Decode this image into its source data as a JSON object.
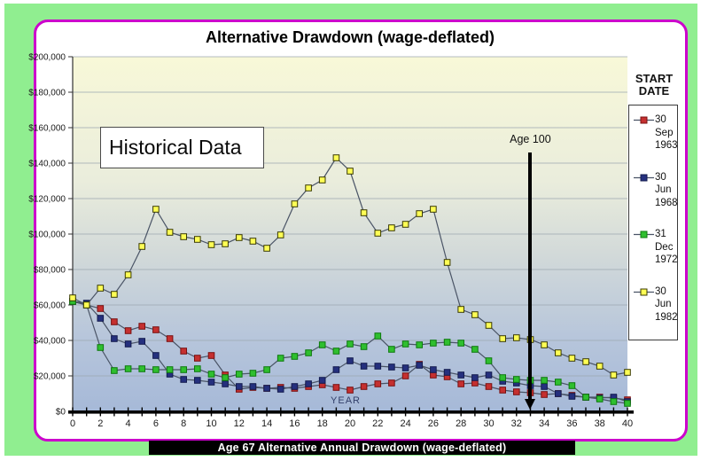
{
  "title": "Alternative Drawdown (wage-deflated)",
  "caption": "Age 67 Alternative Annual Drawdown (wage-deflated)",
  "annotations": {
    "historical": "Historical Data",
    "age100": "Age 100",
    "year_label": "YEAR"
  },
  "legend": {
    "header": "START DATE"
  },
  "colors": {
    "outer_mat": "#90ee90",
    "card_border": "#cc00cc",
    "plot_top": "#f8f8d8",
    "plot_mid": "#d3dad9",
    "plot_bottom": "#a6b9d8",
    "gridline": "#9ba6b0",
    "line": "#4a5466",
    "axis": "#000000"
  },
  "chart_data": {
    "type": "line",
    "title": "Alternative Drawdown (wage-deflated)",
    "xlabel": "YEAR",
    "ylabel": "",
    "xlim": [
      0,
      40
    ],
    "ylim": [
      0,
      200000
    ],
    "grid": true,
    "legend_position": "right",
    "annotation_line_x": 33,
    "x": [
      0,
      1,
      2,
      3,
      4,
      5,
      6,
      7,
      8,
      9,
      10,
      11,
      12,
      13,
      14,
      15,
      16,
      17,
      18,
      19,
      20,
      21,
      22,
      23,
      24,
      25,
      26,
      27,
      28,
      29,
      30,
      31,
      32,
      33,
      34,
      35,
      36,
      37,
      38,
      39,
      40
    ],
    "x_tick_values": [
      0,
      2,
      4,
      6,
      8,
      10,
      12,
      14,
      16,
      18,
      20,
      22,
      24,
      26,
      28,
      30,
      32,
      34,
      36,
      38,
      40
    ],
    "x_tick_labels": [
      "0",
      "2",
      "4",
      "6",
      "8",
      "10",
      "12",
      "14",
      "16",
      "18",
      "20",
      "22",
      "24",
      "26",
      "28",
      "30",
      "32",
      "34",
      "36",
      "38",
      "40"
    ],
    "y_tick_values": [
      200000,
      180000,
      160000,
      140000,
      120000,
      100000,
      80000,
      60000,
      40000,
      20000,
      0
    ],
    "y_tick_labels": [
      "$200,000",
      "$180,000",
      "$160,000",
      "$140,000",
      "$120,000",
      "$100,000",
      "$80,000",
      "$60,000",
      "$40,000",
      "$20,000",
      "$0"
    ],
    "series": [
      {
        "name": "30 Sep 1963",
        "label_lines": [
          "30",
          "Sep",
          "1963"
        ],
        "color": "#c53030",
        "border": "#7a1010",
        "values": [
          62000,
          60000,
          58000,
          50500,
          45500,
          48000,
          46000,
          41000,
          34000,
          30000,
          31500,
          20500,
          12500,
          13500,
          13000,
          13500,
          13000,
          14000,
          15000,
          13500,
          12000,
          14000,
          15500,
          16000,
          20000,
          26500,
          20500,
          19500,
          15500,
          16000,
          14000,
          12000,
          11000,
          10500,
          9500,
          10000,
          9000,
          8000,
          8000,
          7500,
          6500
        ]
      },
      {
        "name": "30 Jun 1968",
        "label_lines": [
          "30",
          "Jun",
          "1968"
        ],
        "color": "#25307e",
        "border": "#131b4e",
        "values": [
          62000,
          61000,
          52500,
          41000,
          38000,
          39500,
          31500,
          21000,
          18000,
          17500,
          16500,
          15500,
          14000,
          14000,
          13000,
          12500,
          14000,
          15500,
          17500,
          23500,
          28500,
          25500,
          25500,
          25000,
          24500,
          26000,
          23500,
          22000,
          20500,
          19000,
          20500,
          17000,
          16000,
          14500,
          14000,
          10000,
          8500,
          8000,
          7500,
          8000,
          5500
        ]
      },
      {
        "name": "31 Dec 1972",
        "label_lines": [
          "31",
          "Dec",
          "1972"
        ],
        "color": "#2fbf2f",
        "border": "#0d7a0d",
        "values": [
          62000,
          60000,
          36000,
          23000,
          24000,
          24000,
          23500,
          23500,
          23500,
          24000,
          21000,
          19000,
          21000,
          21500,
          23500,
          30000,
          31000,
          33000,
          37500,
          34000,
          38000,
          36500,
          42500,
          35000,
          38000,
          37500,
          38500,
          39000,
          38500,
          35000,
          28500,
          19000,
          18000,
          17500,
          17500,
          16500,
          14500,
          8000,
          7000,
          5500,
          4500
        ]
      },
      {
        "name": "30 Jun 1982",
        "label_lines": [
          "30",
          "Jun",
          "1982"
        ],
        "color": "#ffff55",
        "border": "#3a3a00",
        "values": [
          64000,
          60000,
          69500,
          66000,
          77000,
          93000,
          114000,
          101000,
          98500,
          97000,
          94000,
          94500,
          98000,
          96000,
          92000,
          99500,
          117000,
          126000,
          130500,
          143000,
          135500,
          112000,
          100500,
          103500,
          105500,
          111500,
          114000,
          84000,
          57500,
          54500,
          48500,
          41000,
          41500,
          40500,
          37500,
          33000,
          30000,
          28000,
          25500,
          20500,
          22000
        ]
      }
    ]
  }
}
